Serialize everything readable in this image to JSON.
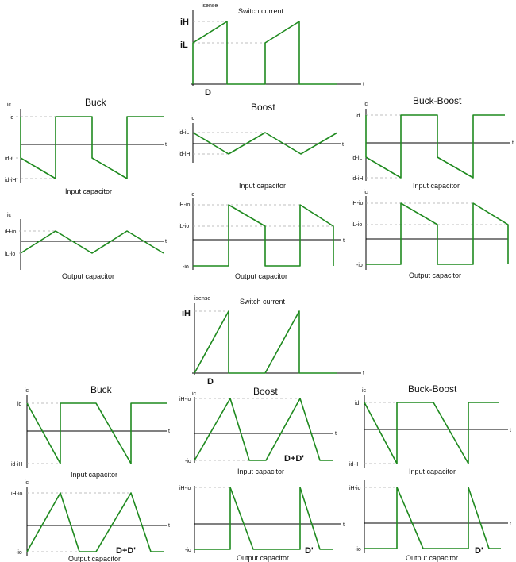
{
  "colors": {
    "waveform": "#1f8a1f",
    "axis": "#000000",
    "guide": "#aaaaaa"
  },
  "common": {
    "t": "t",
    "ic": "ic",
    "isense": "isense"
  },
  "top": {
    "switch": {
      "title": "Switch current",
      "iH": "iH",
      "iL": "iL",
      "D": "D"
    },
    "buck": {
      "title": "Buck",
      "id": "id",
      "id_iL": "id-iL",
      "id_iH": "id-iH",
      "input_caption": "Input capacitor",
      "iH_io": "iH-io",
      "iL_io": "iL-io",
      "output_caption": "Output capacitor"
    },
    "boost": {
      "title": "Boost",
      "id_iL": "id-iL",
      "id_iH": "id-iH",
      "input_caption": "Input capacitor",
      "iH_io": "iH-io",
      "iL_io": "iL-io",
      "neg_io": "-io",
      "output_caption": "Output capacitor"
    },
    "buckboost": {
      "title": "Buck-Boost",
      "id": "id",
      "id_iL": "id-iL",
      "id_iH": "id-iH",
      "input_caption": "Input capacitor",
      "iH_io": "iH-io",
      "iL_io": "iL-io",
      "neg_io": "-io",
      "output_caption": "Output capacitor"
    }
  },
  "bottom": {
    "switch": {
      "title": "Switch current",
      "iH": "iH",
      "D": "D"
    },
    "buck": {
      "title": "Buck",
      "id": "id",
      "id_iH": "id-iH",
      "input_caption": "Input capacitor",
      "iH_io": "iH-io",
      "neg_io": "-io",
      "output_caption": "Output capacitor",
      "dd": "D+D'"
    },
    "boost": {
      "title": "Boost",
      "iH_io": "iH-io",
      "neg_io": "-io",
      "input_caption": "Input capacitor",
      "dd": "D+D'",
      "output_caption": "Output capacitor",
      "dp": "D'"
    },
    "buckboost": {
      "title": "Buck-Boost",
      "id": "id",
      "id_iH": "id-iH",
      "input_caption": "Input capacitor",
      "iH_io": "iH-io",
      "neg_io": "-io",
      "output_caption": "Output capacitor",
      "dp": "D'"
    }
  }
}
